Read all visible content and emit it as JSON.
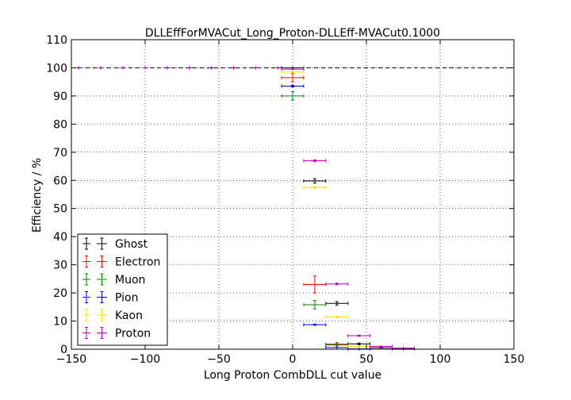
{
  "chart_data": {
    "type": "scatter",
    "title": "DLLEffForMVACut_Long_Proton-DLLEff-MVACut0.1000",
    "xlabel": "Long Proton CombDLL cut value",
    "ylabel": "Efficiency / %",
    "xlim": [
      -150,
      150
    ],
    "ylim": [
      0,
      110
    ],
    "xticks": [
      -150,
      -100,
      -50,
      0,
      50,
      100,
      150
    ],
    "yticks": [
      0,
      10,
      20,
      30,
      40,
      50,
      60,
      70,
      80,
      90,
      100,
      110
    ],
    "grid": true,
    "legend_position": "lower-left",
    "reference_line_y": 100,
    "series": [
      {
        "name": "Ghost",
        "color": "#000000",
        "points": [
          {
            "x": -145,
            "y": 100,
            "xerr": 0,
            "yerr": 0
          },
          {
            "x": -130,
            "y": 100,
            "xerr": 0,
            "yerr": 0
          },
          {
            "x": -115,
            "y": 100,
            "xerr": 0,
            "yerr": 0
          },
          {
            "x": -100,
            "y": 100,
            "xerr": 0,
            "yerr": 0
          },
          {
            "x": -85,
            "y": 100,
            "xerr": 0,
            "yerr": 0
          },
          {
            "x": -70,
            "y": 100,
            "xerr": 0,
            "yerr": 0
          },
          {
            "x": -55,
            "y": 100,
            "xerr": 0,
            "yerr": 0
          },
          {
            "x": -40,
            "y": 100,
            "xerr": 0,
            "yerr": 0
          },
          {
            "x": -25,
            "y": 100,
            "xerr": 0,
            "yerr": 0
          },
          {
            "x": 0,
            "y": 100,
            "xerr": 7.5,
            "yerr": 0
          },
          {
            "x": 15,
            "y": 59.8,
            "xerr": 7.5,
            "yerr": 0.8
          },
          {
            "x": 30,
            "y": 16.3,
            "xerr": 7.5,
            "yerr": 0.6
          },
          {
            "x": 45,
            "y": 1.9,
            "xerr": 7.5,
            "yerr": 0.3
          },
          {
            "x": 60,
            "y": 0.5,
            "xerr": 7.5,
            "yerr": 0.1
          },
          {
            "x": 75,
            "y": 0.1,
            "xerr": 7.5,
            "yerr": 0.05
          }
        ]
      },
      {
        "name": "Electron",
        "color": "#ff0000",
        "points": [
          {
            "x": 0,
            "y": 96.5,
            "xerr": 7.5,
            "yerr": 1.5
          },
          {
            "x": 15,
            "y": 23,
            "xerr": 7.5,
            "yerr": 3
          },
          {
            "x": 30,
            "y": 1.5,
            "xerr": 7.5,
            "yerr": 0.8
          }
        ]
      },
      {
        "name": "Muon",
        "color": "#008000",
        "points": [
          {
            "x": 0,
            "y": 90,
            "xerr": 7.5,
            "yerr": 1.5
          },
          {
            "x": 15,
            "y": 15.8,
            "xerr": 7.5,
            "yerr": 1.5
          },
          {
            "x": 30,
            "y": 1.8,
            "xerr": 7.5,
            "yerr": 0.5
          }
        ]
      },
      {
        "name": "Pion",
        "color": "#0000ff",
        "points": [
          {
            "x": 0,
            "y": 93.5,
            "xerr": 7.5,
            "yerr": 0.3
          },
          {
            "x": 15,
            "y": 8.7,
            "xerr": 7.5,
            "yerr": 0.2
          },
          {
            "x": 30,
            "y": 0.6,
            "xerr": 7.5,
            "yerr": 0.05
          },
          {
            "x": 45,
            "y": 0.1,
            "xerr": 7.5,
            "yerr": 0.02
          }
        ]
      },
      {
        "name": "Kaon",
        "color": "#ffdd00",
        "points": [
          {
            "x": 0,
            "y": 98.5,
            "xerr": 7.5,
            "yerr": 0.3
          },
          {
            "x": 15,
            "y": 57.5,
            "xerr": 7.5,
            "yerr": 0.3
          },
          {
            "x": 30,
            "y": 11.5,
            "xerr": 7.5,
            "yerr": 0.2
          },
          {
            "x": 45,
            "y": 1,
            "xerr": 7.5,
            "yerr": 0.1
          }
        ]
      },
      {
        "name": "Proton",
        "color": "#bf00bf",
        "points": [
          {
            "x": -145,
            "y": 100,
            "xerr": 0,
            "yerr": 0
          },
          {
            "x": -130,
            "y": 100,
            "xerr": 0,
            "yerr": 0
          },
          {
            "x": -115,
            "y": 100,
            "xerr": 0,
            "yerr": 0
          },
          {
            "x": -100,
            "y": 100,
            "xerr": 0,
            "yerr": 0
          },
          {
            "x": -85,
            "y": 100,
            "xerr": 0,
            "yerr": 0
          },
          {
            "x": -70,
            "y": 100,
            "xerr": 0,
            "yerr": 0
          },
          {
            "x": -55,
            "y": 100,
            "xerr": 0,
            "yerr": 0
          },
          {
            "x": -40,
            "y": 100,
            "xerr": 0,
            "yerr": 0
          },
          {
            "x": -25,
            "y": 100,
            "xerr": 0,
            "yerr": 0
          },
          {
            "x": -10,
            "y": 100,
            "xerr": 0,
            "yerr": 0
          },
          {
            "x": 0,
            "y": 99.5,
            "xerr": 7.5,
            "yerr": 0.1
          },
          {
            "x": 15,
            "y": 67,
            "xerr": 7.5,
            "yerr": 0.3
          },
          {
            "x": 30,
            "y": 23.2,
            "xerr": 7.5,
            "yerr": 0.3
          },
          {
            "x": 45,
            "y": 4.8,
            "xerr": 7.5,
            "yerr": 0.2
          },
          {
            "x": 60,
            "y": 1,
            "xerr": 7.5,
            "yerr": 0.1
          },
          {
            "x": 75,
            "y": 0.4,
            "xerr": 7.5,
            "yerr": 0.05
          }
        ]
      }
    ]
  }
}
